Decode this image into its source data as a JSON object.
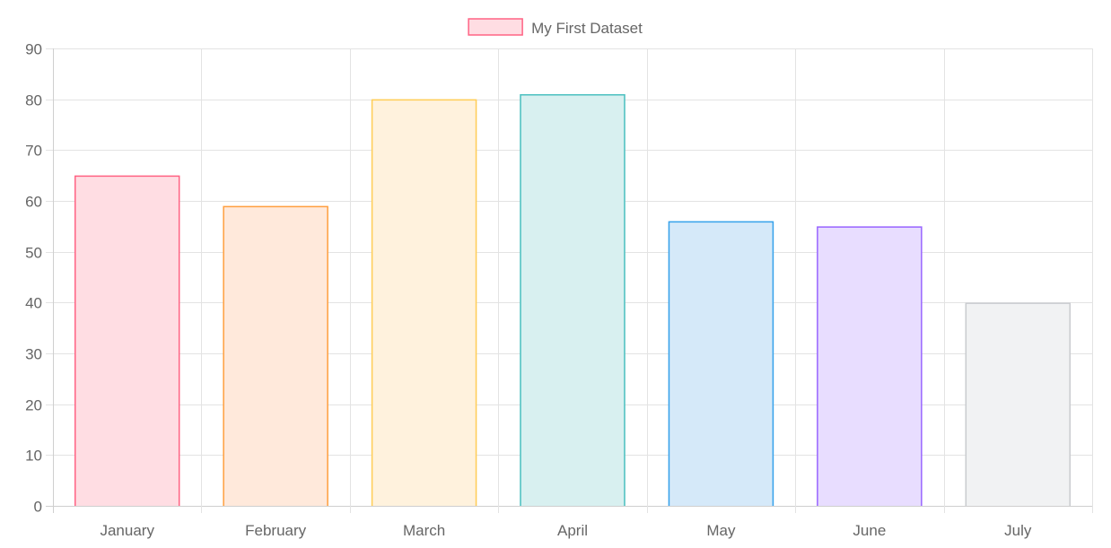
{
  "chart_data": {
    "type": "bar",
    "categories": [
      "January",
      "February",
      "March",
      "April",
      "May",
      "June",
      "July"
    ],
    "series": [
      {
        "name": "My First Dataset",
        "values": [
          65,
          59,
          80,
          81,
          56,
          55,
          40
        ]
      }
    ],
    "ylim": [
      0,
      90
    ],
    "ytick_step": 10,
    "grid": true,
    "legend_position": "top",
    "bar_fill_colors": [
      "#ffdde3",
      "#ffe9db",
      "#fff2dd",
      "#d8f0f0",
      "#d5e9f9",
      "#e8ddff",
      "#f1f2f3"
    ],
    "bar_border_colors": [
      "#ff6384",
      "#ff9f40",
      "#ffcd56",
      "#4bc0c0",
      "#36a2eb",
      "#9966ff",
      "#c9cbcf"
    ],
    "legend_fill_color": "#ffdde3",
    "legend_border_color": "#ff6384",
    "grid_color": "#e3e3e3",
    "text_color": "#666666"
  }
}
